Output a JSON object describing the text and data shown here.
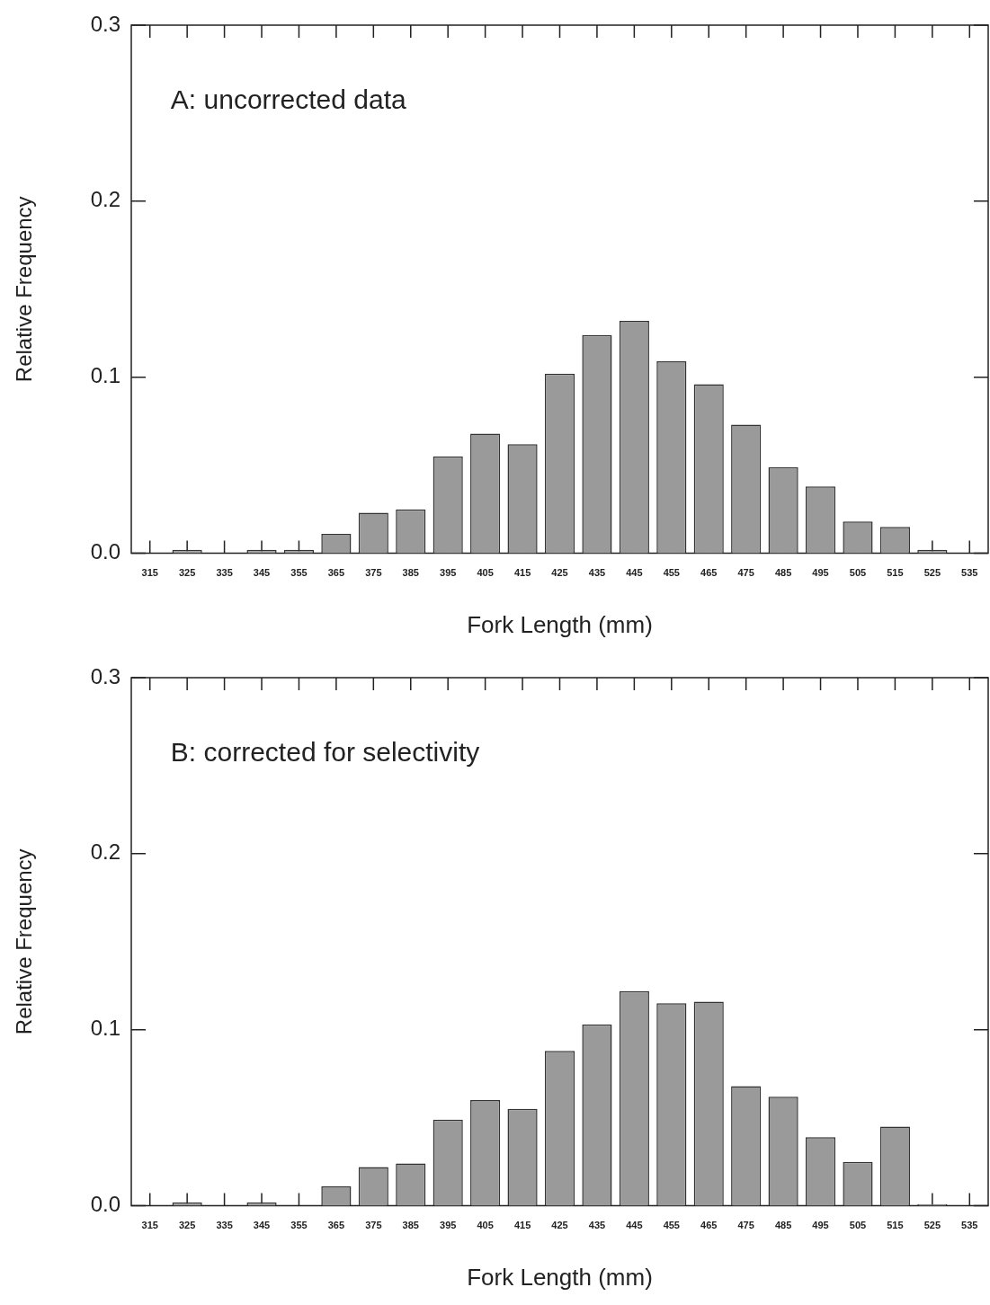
{
  "chart_data": [
    {
      "type": "bar",
      "annotations": [
        "A: uncorrected data"
      ],
      "xlabel": "Fork Length (mm)",
      "ylabel": "Relative Frequency",
      "categories": [
        "315",
        "325",
        "335",
        "345",
        "355",
        "365",
        "375",
        "385",
        "395",
        "405",
        "415",
        "425",
        "435",
        "445",
        "455",
        "465",
        "475",
        "485",
        "495",
        "505",
        "515",
        "525",
        "535"
      ],
      "values": [
        0,
        0.002,
        0,
        0.002,
        0.002,
        0.011,
        0.023,
        0.025,
        0.055,
        0.068,
        0.062,
        0.102,
        0.124,
        0.132,
        0.109,
        0.096,
        0.073,
        0.049,
        0.038,
        0.018,
        0.015,
        0.002,
        0
      ],
      "color": "#9a9a9a",
      "ylim": [
        0,
        0.3
      ],
      "yticks": [
        {
          "value": 0,
          "label": "0.0"
        },
        0.1,
        0.2,
        0.3
      ]
    },
    {
      "type": "bar",
      "annotations": [
        "B: corrected for selectivity"
      ],
      "xlabel": "Fork Length (mm)",
      "ylabel": "Relative Frequency",
      "categories": [
        "315",
        "325",
        "335",
        "345",
        "355",
        "365",
        "375",
        "385",
        "395",
        "405",
        "415",
        "425",
        "435",
        "445",
        "455",
        "465",
        "475",
        "485",
        "495",
        "505",
        "515",
        "525",
        "535"
      ],
      "values": [
        0,
        0.002,
        0,
        0.002,
        0,
        0.011,
        0.022,
        0.024,
        0.049,
        0.06,
        0.055,
        0.088,
        0.103,
        0.122,
        0.115,
        0.116,
        0.068,
        0.062,
        0.039,
        0.025,
        0.045,
        0.001,
        0
      ],
      "color": "#9a9a9a",
      "ylim": [
        0,
        0.3
      ],
      "yticks": [
        {
          "value": 0,
          "label": "0.0"
        },
        0.1,
        0.2,
        0.3
      ]
    }
  ]
}
